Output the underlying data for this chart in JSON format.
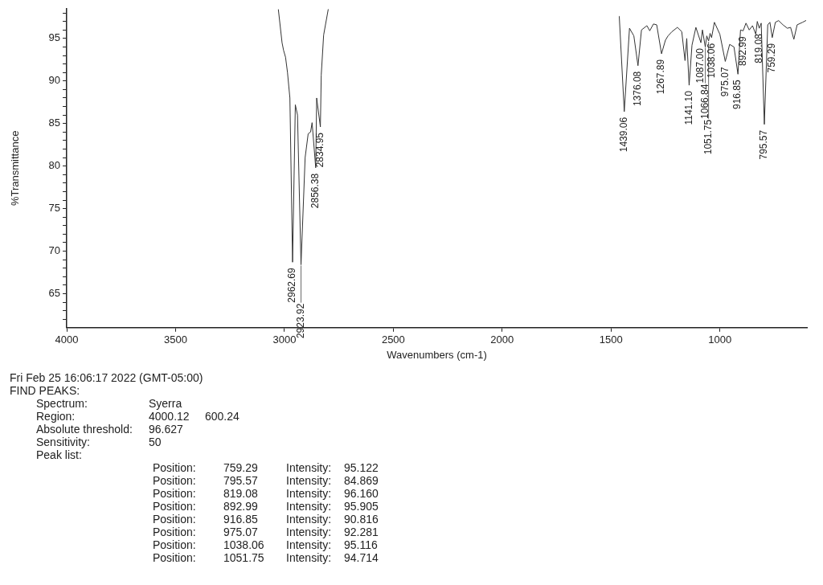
{
  "chart_data": {
    "type": "line",
    "xlabel": "Wavenumbers (cm-1)",
    "ylabel": "%Transmittance",
    "xlim": [
      4000,
      600
    ],
    "xticks": [
      4000,
      3500,
      3000,
      2500,
      2000,
      1500,
      1000
    ],
    "ylim": [
      61,
      98.5
    ],
    "yticks": [
      {
        "value": 62,
        "label": null
      },
      {
        "value": 63,
        "label": null
      },
      {
        "value": 64,
        "label": null
      },
      65,
      {
        "value": 66,
        "label": null
      },
      {
        "value": 67,
        "label": null
      },
      {
        "value": 68,
        "label": null
      },
      {
        "value": 69,
        "label": null
      },
      70,
      {
        "value": 71,
        "label": null
      },
      {
        "value": 72,
        "label": null
      },
      {
        "value": 73,
        "label": null
      },
      {
        "value": 74,
        "label": null
      },
      75,
      {
        "value": 76,
        "label": null
      },
      {
        "value": 77,
        "label": null
      },
      {
        "value": 78,
        "label": null
      },
      {
        "value": 79,
        "label": null
      },
      80,
      {
        "value": 81,
        "label": null
      },
      {
        "value": 82,
        "label": null
      },
      {
        "value": 83,
        "label": null
      },
      {
        "value": 84,
        "label": null
      },
      85,
      {
        "value": 86,
        "label": null
      },
      {
        "value": 87,
        "label": null
      },
      {
        "value": 88,
        "label": null
      },
      {
        "value": 89,
        "label": null
      },
      90,
      {
        "value": 91,
        "label": null
      },
      {
        "value": 92,
        "label": null
      },
      {
        "value": 93,
        "label": null
      },
      {
        "value": 94,
        "label": null
      },
      95,
      {
        "value": 96,
        "label": null
      },
      {
        "value": 97,
        "label": null
      },
      {
        "value": 98,
        "label": null
      }
    ],
    "grid": false,
    "legend": false,
    "marker": "none",
    "line_style": "solid",
    "series": [
      {
        "color": "#333333",
        "x": [
          3028,
          3011,
          3004,
          2995,
          2986,
          2975,
          2962.69,
          2950,
          2940,
          2923.92,
          2905,
          2891,
          2880,
          2873,
          2856.38,
          2852,
          2834.95,
          2831,
          2820,
          2799,
          2000,
          1462,
          1439.06,
          1415,
          1395,
          1376.08,
          1360,
          1335,
          1322,
          1305,
          1290,
          1267.89,
          1250,
          1238,
          1220,
          1195,
          1175,
          1160,
          1152,
          1141.1,
          1128,
          1110,
          1087,
          1080,
          1066.84,
          1060,
          1051.75,
          1045,
          1038.06,
          1025,
          1000,
          975.07,
          955,
          935,
          916.85,
          905,
          892.99,
          880,
          865,
          850,
          835,
          828,
          819.08,
          810,
          795.57,
          780,
          770,
          759.29,
          745,
          730,
          710,
          690,
          675,
          660,
          645,
          620,
          605
        ],
        "values": [
          98.4,
          94.5,
          93.6,
          92.8,
          91.0,
          88.0,
          68.7,
          87.2,
          86.0,
          68.4,
          81.0,
          83.8,
          84.0,
          85.1,
          79.8,
          88.0,
          84.6,
          90.7,
          95.4,
          98.4,
          null,
          97.6,
          86.4,
          96.2,
          95.3,
          91.8,
          96.0,
          96.5,
          95.9,
          96.7,
          96.6,
          93.2,
          94.8,
          95.3,
          95.8,
          96.3,
          95.8,
          92.4,
          95.0,
          89.5,
          94.2,
          96.3,
          94.5,
          96.0,
          94.0,
          95.3,
          94.7,
          95.6,
          95.1,
          96.9,
          95.5,
          92.3,
          94.3,
          94.0,
          90.8,
          96.0,
          95.9,
          96.8,
          96.0,
          96.5,
          95.5,
          97.0,
          96.2,
          96.8,
          84.9,
          96.6,
          96.9,
          95.1,
          96.9,
          97.1,
          96.6,
          96.2,
          96.3,
          94.9,
          96.6,
          96.9,
          97.1
        ]
      }
    ],
    "annotations": [
      {
        "text": "2962.69",
        "x": 2962.69,
        "y": 68.7
      },
      {
        "text": "2923.92",
        "x": 2923.92,
        "y": 68.4
      },
      {
        "text": "2856.38",
        "x": 2856.38,
        "y": 79.8
      },
      {
        "text": "2834.95",
        "x": 2834.95,
        "y": 84.6
      },
      {
        "text": "1439.06",
        "x": 1439.06,
        "y": 86.4
      },
      {
        "text": "1376.08",
        "x": 1376.08,
        "y": 91.8
      },
      {
        "text": "1267.89",
        "x": 1267.89,
        "y": 93.2
      },
      {
        "text": "1141.10",
        "x": 1141.1,
        "y": 89.5
      },
      {
        "text": "1087.00",
        "x": 1087,
        "y": 94.5
      },
      {
        "text": "1066.84",
        "x": 1066.84,
        "y": 94.0
      },
      {
        "text": "1051.75",
        "x": 1051.75,
        "y": 94.7
      },
      {
        "text": "1038.06",
        "x": 1038.06,
        "y": 95.1
      },
      {
        "text": "975.07",
        "x": 975.07,
        "y": 92.3
      },
      {
        "text": "916.85",
        "x": 916.85,
        "y": 90.8
      },
      {
        "text": "892.99",
        "x": 892.99,
        "y": 95.9
      },
      {
        "text": "819.08",
        "x": 819.08,
        "y": 96.2
      },
      {
        "text": "795.57",
        "x": 795.57,
        "y": 84.9
      },
      {
        "text": "759.29",
        "x": 759.29,
        "y": 95.1
      },
      "Fri Feb 25 16:06:17 2022 (GMT-05:00)",
      "FIND PEAKS:",
      "\tSpectrum:\tSyerra",
      "\tRegion:\t4000.12\t600.24",
      "\tAbsolute threshold:\t96.627",
      "\tSensitivity:\t50",
      "\tPeak list:",
      "Position:\t759.29\tIntensity:\t95.122",
      "Position:\t795.57\tIntensity:\t84.869",
      "Position:\t819.08\tIntensity:\t96.160",
      "Position:\t892.99\tIntensity:\t95.905",
      "Position:\t916.85\tIntensity:\t90.816",
      "Position:\t975.07\tIntensity:\t92.281",
      "Position:\t1038.06\tIntensity:\t95.116",
      "Position:\t1051.75\tIntensity:\t94.714"
    ]
  }
}
